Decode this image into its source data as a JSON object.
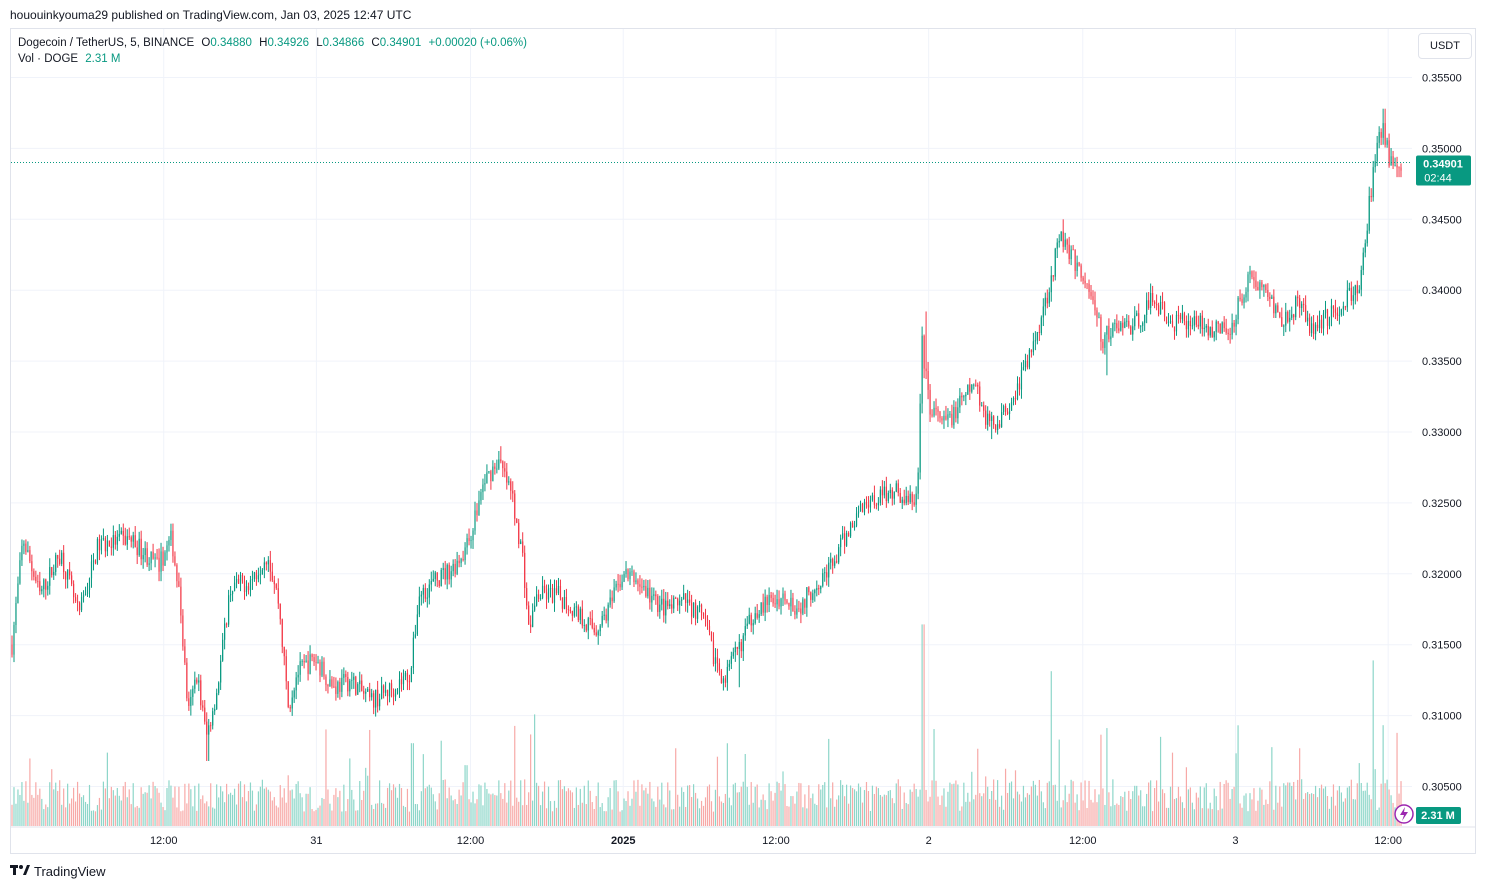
{
  "header": {
    "published": "hououinkyouma29 published on TradingView.com, Jan 03, 2025 12:47 UTC"
  },
  "legend": {
    "symbol": "Dogecoin / TetherUS, 5, BINANCE",
    "o_label": "O",
    "o_value": "0.34880",
    "h_label": "H",
    "h_value": "0.34926",
    "l_label": "L",
    "l_value": "0.34866",
    "c_label": "C",
    "c_value": "0.34901",
    "change": "+0.00020 (+0.06%)",
    "vol_label": "Vol · DOGE",
    "vol_value": "2.31 M"
  },
  "toolbar": {
    "currency": "USDT"
  },
  "price_tag": {
    "price": "0.34901",
    "countdown": "02:44"
  },
  "volume_tag": {
    "value": "2.31 M"
  },
  "footer": {
    "brand": "TradingView"
  },
  "colors": {
    "up": "#089981",
    "down": "#f23645",
    "up_vol": "#8dd6c9",
    "down_vol": "#f7a9a7",
    "grid": "#f0f3fa"
  },
  "chart_data": {
    "type": "candlestick",
    "symbol": "Dogecoin / TetherUS",
    "interval": "5",
    "exchange": "BINANCE",
    "y_ticks": [
      "0.35500",
      "0.35000",
      "0.34500",
      "0.34000",
      "0.33500",
      "0.33000",
      "0.32500",
      "0.32000",
      "0.31500",
      "0.31000",
      "0.30500"
    ],
    "ylim": [
      0.3025,
      0.3575
    ],
    "x_tick_labels": [
      {
        "label": "12:00",
        "pos": 0.109,
        "bold": false
      },
      {
        "label": "31",
        "pos": 0.218,
        "bold": false
      },
      {
        "label": "12:00",
        "pos": 0.328,
        "bold": false
      },
      {
        "label": "2025",
        "pos": 0.437,
        "bold": true
      },
      {
        "label": "12:00",
        "pos": 0.546,
        "bold": false
      },
      {
        "label": "2",
        "pos": 0.655,
        "bold": false
      },
      {
        "label": "12:00",
        "pos": 0.765,
        "bold": false
      },
      {
        "label": "3",
        "pos": 0.874,
        "bold": false
      },
      {
        "label": "12:00",
        "pos": 0.983,
        "bold": false
      }
    ],
    "last_price": 0.34901,
    "price_path": [
      [
        0.0,
        0.315
      ],
      [
        0.008,
        0.3225
      ],
      [
        0.02,
        0.3185
      ],
      [
        0.035,
        0.3215
      ],
      [
        0.048,
        0.317
      ],
      [
        0.062,
        0.322
      ],
      [
        0.085,
        0.3225
      ],
      [
        0.105,
        0.3205
      ],
      [
        0.115,
        0.3225
      ],
      [
        0.121,
        0.318
      ],
      [
        0.127,
        0.31
      ],
      [
        0.133,
        0.313
      ],
      [
        0.14,
        0.3085
      ],
      [
        0.148,
        0.312
      ],
      [
        0.157,
        0.319
      ],
      [
        0.172,
        0.3195
      ],
      [
        0.184,
        0.3215
      ],
      [
        0.192,
        0.318
      ],
      [
        0.199,
        0.3105
      ],
      [
        0.205,
        0.313
      ],
      [
        0.218,
        0.314
      ],
      [
        0.232,
        0.312
      ],
      [
        0.244,
        0.3125
      ],
      [
        0.258,
        0.311
      ],
      [
        0.275,
        0.312
      ],
      [
        0.287,
        0.313
      ],
      [
        0.293,
        0.3185
      ],
      [
        0.305,
        0.3195
      ],
      [
        0.318,
        0.3205
      ],
      [
        0.328,
        0.322
      ],
      [
        0.34,
        0.3265
      ],
      [
        0.35,
        0.328
      ],
      [
        0.36,
        0.3255
      ],
      [
        0.368,
        0.321
      ],
      [
        0.372,
        0.316
      ],
      [
        0.378,
        0.3185
      ],
      [
        0.393,
        0.3185
      ],
      [
        0.41,
        0.317
      ],
      [
        0.42,
        0.316
      ],
      [
        0.432,
        0.318
      ],
      [
        0.44,
        0.32
      ],
      [
        0.45,
        0.3195
      ],
      [
        0.463,
        0.318
      ],
      [
        0.472,
        0.3175
      ],
      [
        0.485,
        0.318
      ],
      [
        0.497,
        0.317
      ],
      [
        0.506,
        0.314
      ],
      [
        0.513,
        0.3125
      ],
      [
        0.522,
        0.3145
      ],
      [
        0.535,
        0.3175
      ],
      [
        0.546,
        0.318
      ],
      [
        0.558,
        0.3185
      ],
      [
        0.566,
        0.3175
      ],
      [
        0.58,
        0.3195
      ],
      [
        0.59,
        0.3205
      ],
      [
        0.602,
        0.323
      ],
      [
        0.613,
        0.325
      ],
      [
        0.625,
        0.3255
      ],
      [
        0.635,
        0.326
      ],
      [
        0.645,
        0.325
      ],
      [
        0.652,
        0.3255
      ],
      [
        0.655,
        0.3365
      ],
      [
        0.66,
        0.332
      ],
      [
        0.67,
        0.3305
      ],
      [
        0.68,
        0.3315
      ],
      [
        0.693,
        0.3335
      ],
      [
        0.703,
        0.3305
      ],
      [
        0.712,
        0.331
      ],
      [
        0.723,
        0.333
      ],
      [
        0.735,
        0.336
      ],
      [
        0.746,
        0.34
      ],
      [
        0.755,
        0.344
      ],
      [
        0.765,
        0.342
      ],
      [
        0.776,
        0.34
      ],
      [
        0.785,
        0.3365
      ],
      [
        0.796,
        0.3375
      ],
      [
        0.808,
        0.3375
      ],
      [
        0.822,
        0.3395
      ],
      [
        0.835,
        0.3375
      ],
      [
        0.848,
        0.338
      ],
      [
        0.86,
        0.3375
      ],
      [
        0.876,
        0.337
      ],
      [
        0.89,
        0.341
      ],
      [
        0.902,
        0.34
      ],
      [
        0.915,
        0.338
      ],
      [
        0.925,
        0.339
      ],
      [
        0.935,
        0.3375
      ],
      [
        0.945,
        0.338
      ],
      [
        0.952,
        0.3385
      ],
      [
        0.962,
        0.3395
      ],
      [
        0.97,
        0.34
      ],
      [
        0.977,
        0.346
      ],
      [
        0.983,
        0.35
      ],
      [
        0.987,
        0.3515
      ],
      [
        0.992,
        0.349
      ]
    ],
    "notable_extremes": [
      {
        "pos": 0.141,
        "low": 0.3068
      },
      {
        "pos": 0.352,
        "high": 0.329
      },
      {
        "pos": 0.524,
        "low": 0.312
      },
      {
        "pos": 0.658,
        "high": 0.3385
      },
      {
        "pos": 0.705,
        "low": 0.3295
      },
      {
        "pos": 0.757,
        "high": 0.345
      },
      {
        "pos": 0.788,
        "low": 0.334
      },
      {
        "pos": 0.988,
        "high": 0.3528
      }
    ],
    "volume_spikes": [
      {
        "pos": 0.656,
        "value": 5.6
      },
      {
        "pos": 0.748,
        "value": 4.3
      },
      {
        "pos": 0.98,
        "value": 4.6
      },
      {
        "pos": 0.987,
        "value": 2.8
      },
      {
        "pos": 0.376,
        "value": 3.1
      },
      {
        "pos": 0.288,
        "value": 2.3
      },
      {
        "pos": 0.528,
        "value": 2.0
      }
    ]
  }
}
